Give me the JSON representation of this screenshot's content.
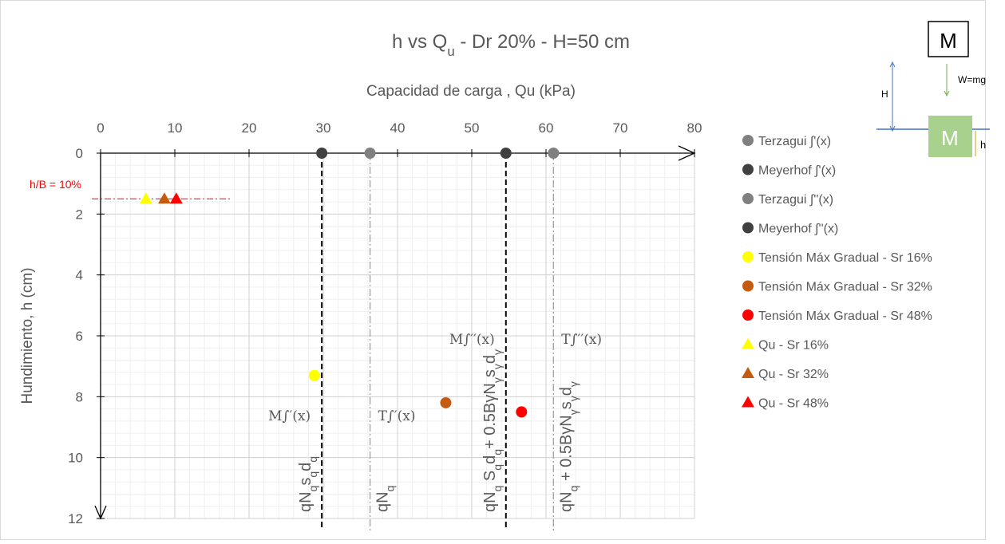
{
  "chart_data": {
    "type": "scatter",
    "title": [
      "h vs Q",
      {
        "sub": "u"
      },
      " - Dr 20% - H=50 cm"
    ],
    "x_label": "Capacidad de carga , Qu (kPa)",
    "y_label": "Hundimiento, h (cm)",
    "xlim": [
      0,
      80
    ],
    "xticks": [
      0,
      10,
      20,
      30,
      40,
      50,
      60,
      70,
      80
    ],
    "ylim": [
      0,
      12
    ],
    "yticks": [
      0,
      2,
      4,
      6,
      8,
      10,
      12
    ],
    "y_inverted": true,
    "x_axis_position": "top",
    "grid": true,
    "series": [
      {
        "name": "Terzagui ∫'(x)",
        "color": "#808080",
        "marker": "circle",
        "x": [
          36.3,
          61.0
        ],
        "y": [
          0,
          0
        ]
      },
      {
        "name": "Meyerhof ∫'(x)",
        "color": "#404040",
        "marker": "circle",
        "x": [
          29.8,
          54.6
        ],
        "y": [
          0,
          0
        ]
      },
      {
        "name": "Terzagui ∫''(x)",
        "color": "#808080",
        "marker": "circle",
        "x": [],
        "y": []
      },
      {
        "name": "Meyerhof ∫''(x)",
        "color": "#404040",
        "marker": "circle",
        "x": [],
        "y": []
      },
      {
        "name": "Tensión Máx Gradual - Sr 16%",
        "color": "#ffff00",
        "marker": "circle",
        "x": [
          28.8
        ],
        "y": [
          7.3
        ]
      },
      {
        "name": "Tensión Máx Gradual - Sr 32%",
        "color": "#c55a11",
        "marker": "circle",
        "x": [
          46.5
        ],
        "y": [
          8.2
        ]
      },
      {
        "name": "Tensión Máx Gradual - Sr 48%",
        "color": "#ff0000",
        "marker": "circle",
        "x": [
          56.7
        ],
        "y": [
          8.5
        ]
      },
      {
        "name": "Qu - Sr 16%",
        "color": "#ffff00",
        "marker": "triangle",
        "x": [
          6.1
        ],
        "y": [
          1.5
        ]
      },
      {
        "name": "Qu - Sr 32%",
        "color": "#c55a11",
        "marker": "triangle",
        "x": [
          8.6
        ],
        "y": [
          1.5
        ]
      },
      {
        "name": "Qu - Sr 48%",
        "color": "#ff0000",
        "marker": "triangle",
        "x": [
          10.2
        ],
        "y": [
          1.5
        ]
      }
    ],
    "vlines": [
      {
        "x": 29.8,
        "style": "dashed",
        "color": "#000000",
        "note": "M∫′(x)",
        "label": [
          "qN",
          {
            "sub": "q"
          },
          "s",
          {
            "sub": "q"
          },
          "d",
          {
            "sub": "q"
          }
        ]
      },
      {
        "x": 36.3,
        "style": "dashdot",
        "color": "#a0a0a0",
        "note": "T∫′(x)",
        "label": [
          "qN",
          {
            "sub": "q"
          }
        ]
      },
      {
        "x": 54.6,
        "style": "dashed",
        "color": "#000000",
        "note": "M∫′′(x)",
        "label": [
          "qN",
          {
            "sub": "q"
          },
          " S",
          {
            "sub": "q"
          },
          "d",
          {
            "sub": "q"
          },
          "+ 0.5BγN",
          {
            "sub": "γ"
          },
          "s",
          {
            "sub": "γ"
          },
          "d",
          {
            "sub": "γ"
          }
        ]
      },
      {
        "x": 61.0,
        "style": "dashdot",
        "color": "#a0a0a0",
        "note": "T∫′′(x)",
        "label": [
          "qN",
          {
            "sub": "q"
          },
          " + 0.5BγN",
          {
            "sub": "γ"
          },
          "s",
          {
            "sub": "γ"
          },
          "d",
          {
            "sub": "γ"
          }
        ]
      }
    ],
    "hline": {
      "y": 1.5,
      "color": "#ff0000",
      "label": "h/B = 10%"
    }
  },
  "inset": {
    "box": "M",
    "height": "H",
    "weight": "W=mg",
    "block": "M",
    "settlement": "h"
  }
}
